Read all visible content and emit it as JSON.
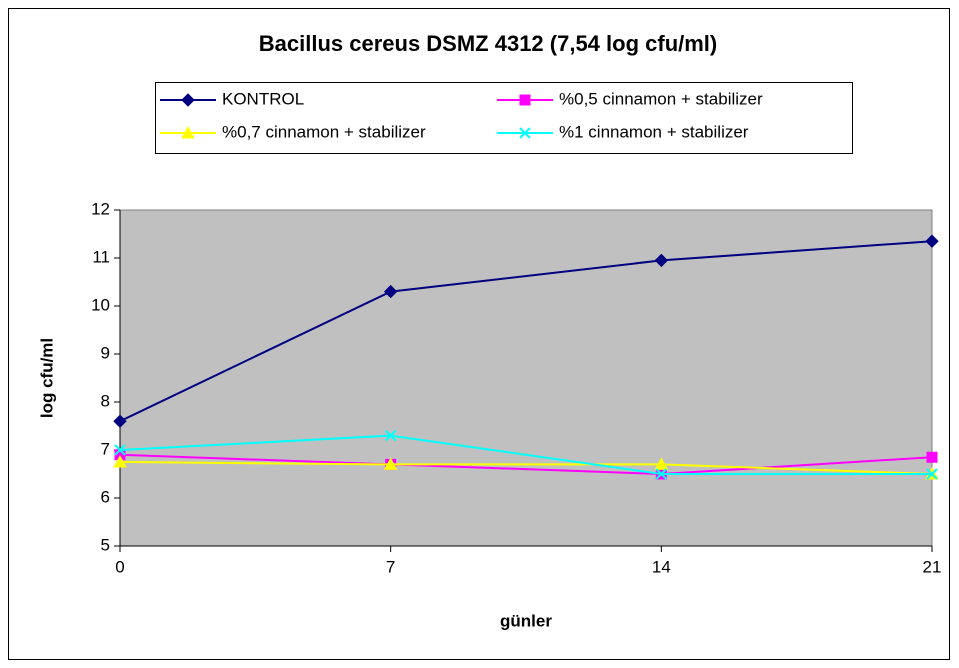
{
  "chart_data": {
    "type": "line",
    "title": "Bacillus cereus DSMZ 4312 (7,54 log cfu/ml)",
    "x_label": "günler",
    "y_label": "log cfu/ml",
    "x": [
      0,
      7,
      14,
      21
    ],
    "xlim": [
      0,
      21
    ],
    "xticks": [
      0,
      7,
      14,
      21
    ],
    "ylim": [
      5,
      12
    ],
    "yticks": [
      5,
      6,
      7,
      8,
      9,
      10,
      11,
      12
    ],
    "grid": false,
    "legend": "top",
    "plot_background": "#c0c0c0",
    "series": [
      {
        "name": "KONTROL",
        "color": "#000080",
        "marker": "diamond",
        "values": [
          7.6,
          10.3,
          10.95,
          11.35
        ]
      },
      {
        "name": "%0,5 cinnamon + stabilizer",
        "color": "#ff00ff",
        "marker": "square",
        "values": [
          6.9,
          6.7,
          6.5,
          6.85
        ]
      },
      {
        "name": "%0,7 cinnamon + stabilizer",
        "color": "#ffff00",
        "marker": "triangle",
        "values": [
          6.75,
          6.7,
          6.7,
          6.5
        ]
      },
      {
        "name": "%1 cinnamon + stabilizer",
        "color": "#00ffff",
        "marker": "x",
        "values": [
          7.0,
          7.3,
          6.5,
          6.5
        ]
      }
    ]
  }
}
